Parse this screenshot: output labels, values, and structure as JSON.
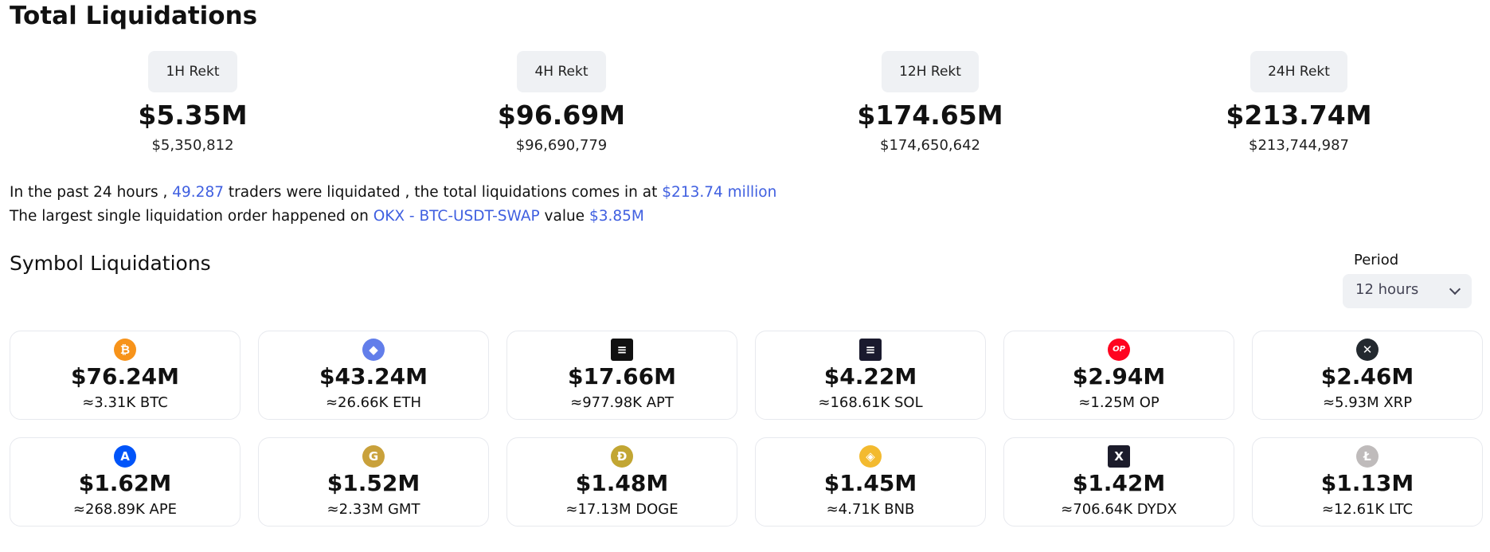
{
  "page": {
    "title": "Total Liquidations"
  },
  "rekt": [
    {
      "label": "1H Rekt",
      "short": "$5.35M",
      "full": "$5,350,812"
    },
    {
      "label": "4H Rekt",
      "short": "$96.69M",
      "full": "$96,690,779"
    },
    {
      "label": "12H Rekt",
      "short": "$174.65M",
      "full": "$174,650,642"
    },
    {
      "label": "24H Rekt",
      "short": "$213.74M",
      "full": "$213,744,987"
    }
  ],
  "summary": {
    "line1_a": "In the past 24 hours ,",
    "line1_traders": "49.287",
    "line1_b": "traders were liquidated , the total liquidations comes in at",
    "line1_total": "$213.74 million",
    "line2_a": "The largest single liquidation order happened on",
    "line2_exchange": "OKX - BTC-USDT-SWAP",
    "line2_b": "value",
    "line2_value": "$3.85M"
  },
  "symbols": {
    "title": "Symbol Liquidations",
    "period_label": "Period",
    "period_value": "12 hours",
    "items": [
      {
        "icon": "bitcoin-icon",
        "glyph": "₿",
        "color": "#f7931a",
        "amount": "$76.24M",
        "sub": "≈3.31K BTC"
      },
      {
        "icon": "ethereum-icon",
        "glyph": "◆",
        "color": "#627eea",
        "amount": "$43.24M",
        "sub": "≈26.66K ETH"
      },
      {
        "icon": "aptos-icon",
        "glyph": "≡",
        "color": "#111111",
        "amount": "$17.66M",
        "sub": "≈977.98K APT"
      },
      {
        "icon": "solana-icon",
        "glyph": "≡",
        "color": "#1a1a2e",
        "amount": "$4.22M",
        "sub": "≈168.61K SOL"
      },
      {
        "icon": "optimism-icon",
        "glyph": "OP",
        "color": "#ff0420",
        "amount": "$2.94M",
        "sub": "≈1.25M OP"
      },
      {
        "icon": "xrp-icon",
        "glyph": "✕",
        "color": "#23292f",
        "amount": "$2.46M",
        "sub": "≈5.93M XRP"
      },
      {
        "icon": "apecoin-icon",
        "glyph": "A",
        "color": "#0054f9",
        "amount": "$1.62M",
        "sub": "≈268.89K APE"
      },
      {
        "icon": "gmt-icon",
        "glyph": "G",
        "color": "#c9a13b",
        "amount": "$1.52M",
        "sub": "≈2.33M GMT"
      },
      {
        "icon": "dogecoin-icon",
        "glyph": "Ð",
        "color": "#c2a633",
        "amount": "$1.48M",
        "sub": "≈17.13M DOGE"
      },
      {
        "icon": "bnb-icon",
        "glyph": "◈",
        "color": "#f3ba2f",
        "amount": "$1.45M",
        "sub": "≈4.71K BNB"
      },
      {
        "icon": "dydx-icon",
        "glyph": "X",
        "color": "#1c1c2b",
        "amount": "$1.42M",
        "sub": "≈706.64K DYDX"
      },
      {
        "icon": "litecoin-icon",
        "glyph": "Ł",
        "color": "#bfbbbb",
        "amount": "$1.13M",
        "sub": "≈12.61K LTC"
      }
    ]
  }
}
